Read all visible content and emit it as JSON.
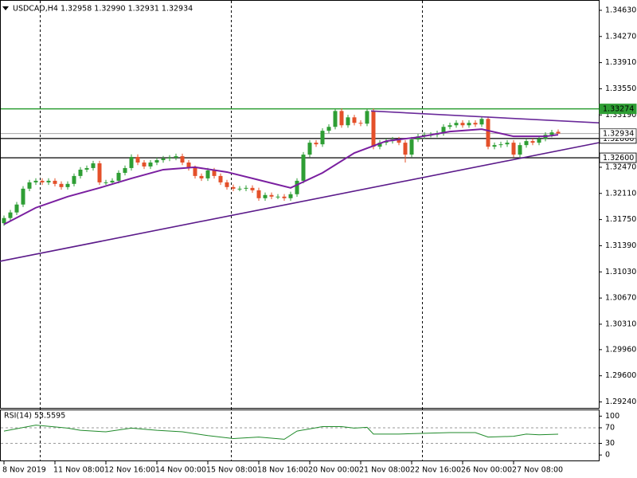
{
  "chart_data": [
    {
      "type": "candlestick",
      "title": "USDCAD,H4  1.32958 1.32990 1.32931 1.32934",
      "open": [
        1.317,
        1.31771,
        1.31848,
        1.31957,
        1.32175,
        1.32262,
        1.32284,
        1.32262,
        1.32284,
        1.32241,
        1.32197,
        1.32241,
        1.3235,
        1.32437,
        1.32459,
        1.32524,
        1.32262,
        1.32262,
        1.32284,
        1.32393,
        1.32459,
        1.32612,
        1.32535,
        1.32481,
        1.32535,
        1.32568,
        1.3259,
        1.32601,
        1.32622,
        1.32535,
        1.32459,
        1.3235,
        1.32317,
        1.32426,
        1.3235,
        1.32262,
        1.32197,
        1.32175,
        1.32175,
        1.32186,
        1.32153,
        1.32044,
        1.32088,
        1.32066,
        1.32066,
        1.32044,
        1.32099,
        1.32284,
        1.32644,
        1.32808,
        1.32786,
        1.32972,
        1.33026,
        1.33244,
        1.33048,
        1.33157,
        1.33081,
        1.3307,
        1.33244,
        1.32753,
        1.32808,
        1.3283,
        1.32852,
        1.32808,
        1.32644,
        1.32852,
        1.32895,
        1.32917,
        1.32917,
        1.32939,
        1.33026,
        1.33048,
        1.33081,
        1.33048,
        1.33081,
        1.33059,
        1.33135,
        1.32753,
        1.32775,
        1.32786,
        1.32808,
        1.32644,
        1.32775,
        1.3283,
        1.32808,
        1.32862,
        1.32917,
        1.32958
      ],
      "high": [
        1.31806,
        1.31883,
        1.31992,
        1.3221,
        1.32297,
        1.32319,
        1.32319,
        1.32319,
        1.32319,
        1.32276,
        1.32276,
        1.32385,
        1.32472,
        1.32494,
        1.32559,
        1.32559,
        1.32297,
        1.32319,
        1.32428,
        1.32494,
        1.32647,
        1.32647,
        1.3257,
        1.3257,
        1.32603,
        1.32625,
        1.32636,
        1.32657,
        1.32657,
        1.3257,
        1.32494,
        1.32385,
        1.32461,
        1.32461,
        1.32385,
        1.32297,
        1.32232,
        1.3221,
        1.32221,
        1.32221,
        1.32188,
        1.32123,
        1.32123,
        1.32101,
        1.32101,
        1.32134,
        1.32319,
        1.32679,
        1.32843,
        1.32843,
        1.33007,
        1.33061,
        1.33279,
        1.33279,
        1.33192,
        1.33192,
        1.33116,
        1.33279,
        1.33279,
        1.32843,
        1.32865,
        1.32887,
        1.32887,
        1.32843,
        1.32887,
        1.3293,
        1.32952,
        1.32952,
        1.32974,
        1.33061,
        1.33083,
        1.33116,
        1.33116,
        1.33116,
        1.33116,
        1.3317,
        1.3317,
        1.3281,
        1.32821,
        1.32843,
        1.32843,
        1.3281,
        1.32865,
        1.32865,
        1.32897,
        1.32952,
        1.32985,
        1.3299
      ],
      "low": [
        1.31665,
        1.31736,
        1.31813,
        1.31922,
        1.3214,
        1.32227,
        1.32227,
        1.32227,
        1.32206,
        1.32162,
        1.32162,
        1.32206,
        1.32315,
        1.32402,
        1.32424,
        1.32227,
        1.32227,
        1.32227,
        1.32249,
        1.32358,
        1.32424,
        1.325,
        1.32446,
        1.32446,
        1.325,
        1.32533,
        1.32555,
        1.32566,
        1.325,
        1.32424,
        1.32315,
        1.32282,
        1.32282,
        1.32315,
        1.32227,
        1.32162,
        1.3214,
        1.3214,
        1.3214,
        1.32118,
        1.32009,
        1.32009,
        1.32031,
        1.32031,
        1.32009,
        1.32009,
        1.32064,
        1.32249,
        1.32609,
        1.32751,
        1.32751,
        1.32937,
        1.32991,
        1.33013,
        1.33013,
        1.33046,
        1.33035,
        1.33035,
        1.32718,
        1.32718,
        1.32773,
        1.32795,
        1.32773,
        1.32535,
        1.32609,
        1.32817,
        1.3286,
        1.32882,
        1.32882,
        1.32904,
        1.32991,
        1.33013,
        1.33013,
        1.33013,
        1.33024,
        1.33024,
        1.32718,
        1.32718,
        1.3274,
        1.32751,
        1.32609,
        1.32609,
        1.3274,
        1.32773,
        1.32773,
        1.32827,
        1.32882,
        1.32931
      ],
      "close": [
        1.31771,
        1.31848,
        1.31957,
        1.32175,
        1.32262,
        1.32284,
        1.32262,
        1.32284,
        1.32241,
        1.32197,
        1.32241,
        1.3235,
        1.32437,
        1.32459,
        1.32524,
        1.32262,
        1.32262,
        1.32284,
        1.32393,
        1.32459,
        1.32612,
        1.32535,
        1.32481,
        1.32535,
        1.32568,
        1.3259,
        1.32601,
        1.32622,
        1.32535,
        1.32459,
        1.3235,
        1.32317,
        1.32426,
        1.3235,
        1.32262,
        1.32197,
        1.32175,
        1.32175,
        1.32186,
        1.32153,
        1.32044,
        1.32088,
        1.32066,
        1.32066,
        1.32044,
        1.32099,
        1.32284,
        1.32644,
        1.32808,
        1.32786,
        1.32972,
        1.33026,
        1.33244,
        1.33048,
        1.33157,
        1.33081,
        1.3307,
        1.33244,
        1.32753,
        1.32808,
        1.3283,
        1.32852,
        1.32808,
        1.32644,
        1.32852,
        1.32895,
        1.32917,
        1.32917,
        1.32939,
        1.33026,
        1.33048,
        1.33081,
        1.33048,
        1.33081,
        1.33059,
        1.33135,
        1.32753,
        1.32775,
        1.32786,
        1.32808,
        1.32644,
        1.32775,
        1.3283,
        1.32808,
        1.32862,
        1.32917,
        1.3295,
        1.32934
      ],
      "up_color": "#2e9e34",
      "down_color": "#e4502a",
      "xlim": [
        -0.625,
        93.375
      ],
      "xticks": [
        {
          "value": 0,
          "label": "8 Nov 2019"
        },
        {
          "value": 8,
          "label": "11 Nov 08:00"
        },
        {
          "value": 16,
          "label": "12 Nov 16:00"
        },
        {
          "value": 24,
          "label": "14 Nov 00:00"
        },
        {
          "value": 32,
          "label": "15 Nov 08:00"
        },
        {
          "value": 40,
          "label": "18 Nov 16:00"
        },
        {
          "value": 48,
          "label": "20 Nov 00:00"
        },
        {
          "value": 56,
          "label": "21 Nov 08:00"
        },
        {
          "value": 64,
          "label": "22 Nov 16:00"
        },
        {
          "value": 72,
          "label": "26 Nov 00:00"
        },
        {
          "value": 80,
          "label": "27 Nov 08:00"
        }
      ],
      "ylim": [
        1.2918,
        1.3475
      ],
      "yticks": [
        {
          "value": 1.3463,
          "label": "1.34630"
        },
        {
          "value": 1.3427,
          "label": "1.34270"
        },
        {
          "value": 1.3391,
          "label": "1.33910"
        },
        {
          "value": 1.3355,
          "label": "1.33550"
        },
        {
          "value": 1.3319,
          "label": "1.33190"
        },
        {
          "value": 1.3247,
          "label": "1.32470"
        },
        {
          "value": 1.3211,
          "label": "1.32110"
        },
        {
          "value": 1.3175,
          "label": "1.31750"
        },
        {
          "value": 1.3139,
          "label": "1.31390"
        },
        {
          "value": 1.3103,
          "label": "1.31030"
        },
        {
          "value": 1.3067,
          "label": "1.30670"
        },
        {
          "value": 1.3031,
          "label": "1.30310"
        },
        {
          "value": 1.2996,
          "label": "1.29960"
        },
        {
          "value": 1.296,
          "label": "1.29600"
        },
        {
          "value": 1.2924,
          "label": "1.29240"
        }
      ],
      "overlays": [
        {
          "type": "line",
          "color": "#5b1a8a",
          "x": [
            -0.625,
            93.375
          ],
          "values": [
            1.31176,
            1.32808
          ]
        },
        {
          "type": "line",
          "color": "#6a2a9a",
          "x": [
            57.625,
            93.375
          ],
          "values": [
            1.33244,
            1.33081
          ]
        },
        {
          "type": "line",
          "color": "#7a1fa0",
          "x": [
            0,
            5,
            10,
            15,
            20,
            25,
            30,
            35,
            40,
            45,
            50,
            55,
            60,
            65,
            70,
            75,
            80,
            85,
            87
          ],
          "values": [
            1.31684,
            1.31913,
            1.32066,
            1.32186,
            1.32317,
            1.32437,
            1.3247,
            1.32404,
            1.32295,
            1.32186,
            1.32393,
            1.32666,
            1.3283,
            1.32884,
            1.32961,
            1.32994,
            1.32895,
            1.32895,
            1.32917
          ]
        }
      ],
      "hlines": [
        {
          "value": 1.33274,
          "color": "#2e9e34"
        },
        {
          "value": 1.32866,
          "color": "#1a1a1a"
        },
        {
          "value": 1.326,
          "label": "1.32600",
          "color": "#1a1a1a"
        }
      ],
      "last_price": 1.32934
    },
    {
      "type": "line",
      "title": "RSI(14) 53.5595",
      "color": "#1f8a2a",
      "xlim": [
        -0.625,
        93.375
      ],
      "x": [
        0,
        5,
        10,
        12,
        16,
        20,
        24,
        28,
        32,
        36,
        40,
        44,
        46,
        50,
        53,
        55,
        57,
        58,
        62,
        66,
        70,
        74,
        76,
        80,
        82,
        84,
        87
      ],
      "values": [
        61.5,
        76.9,
        69.2,
        63.5,
        59.6,
        69.2,
        63.5,
        59.6,
        50,
        42.3,
        46.2,
        40.4,
        61.5,
        73.1,
        73.1,
        69.2,
        71.2,
        53.8,
        53.8,
        55.8,
        57.7,
        57.7,
        46.2,
        48.1,
        53.8,
        51.9,
        53.56
      ],
      "ylim": [
        -10,
        113
      ],
      "yticks": [
        100,
        70,
        30,
        0
      ],
      "levels": [
        70,
        30
      ]
    }
  ]
}
